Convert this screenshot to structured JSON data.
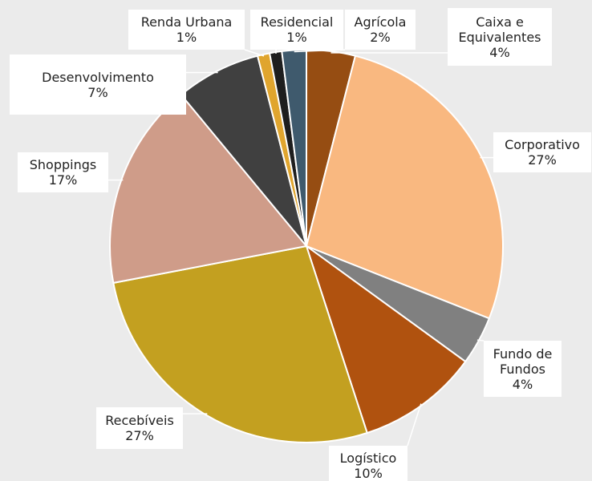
{
  "chart_data": {
    "type": "pie",
    "categories": [
      "Caixa e Equivalentes",
      "Corporativo",
      "Fundo de Fundos",
      "Logístico",
      "Recebíveis",
      "Shoppings",
      "Desenvolvimento",
      "Renda Urbana",
      "Residencial",
      "Agrícola"
    ],
    "values": [
      4,
      27,
      4,
      10,
      27,
      17,
      7,
      1,
      1,
      2
    ],
    "value_labels": [
      "4%",
      "27%",
      "4%",
      "10%",
      "27%",
      "17%",
      "7%",
      "1%",
      "1%",
      "2%"
    ],
    "colors": [
      "#964d12",
      "#f9b880",
      "#808080",
      "#b0520f",
      "#c3a020",
      "#cf9c89",
      "#404040",
      "#e0a52e",
      "#1e1e1e",
      "#3f5a6d"
    ]
  }
}
